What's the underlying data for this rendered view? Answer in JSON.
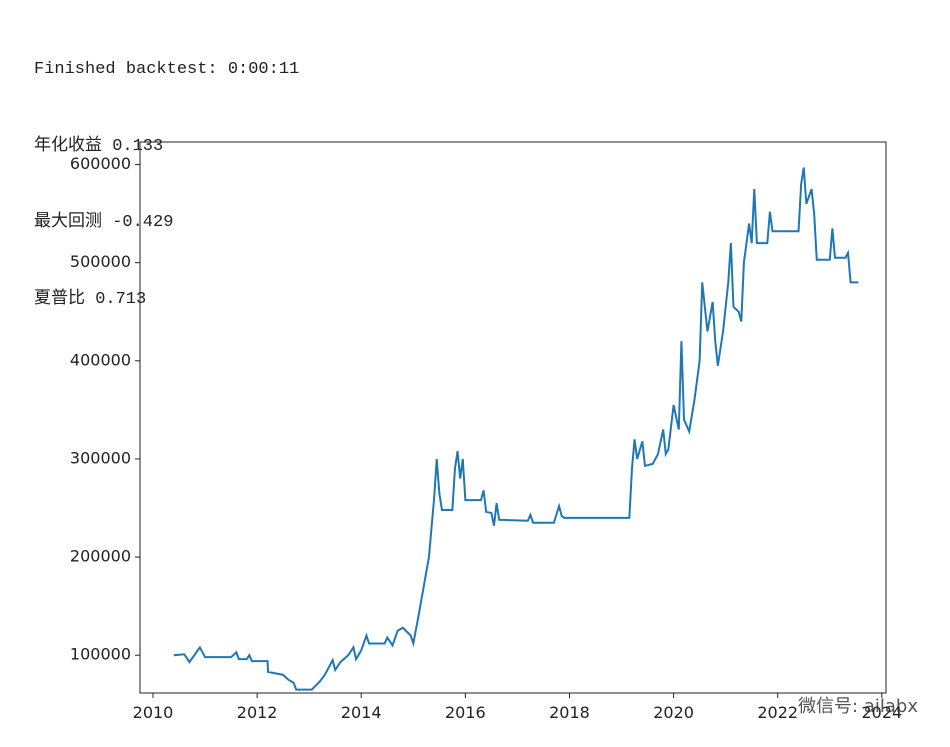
{
  "output": {
    "lines": [
      "Finished backtest: 0:00:11",
      "年化收益 0.133",
      "最大回测 -0.429",
      "夏普比 0.713"
    ]
  },
  "watermark": "微信号: ailabx",
  "chart_data": {
    "type": "line",
    "x": [
      2010.4,
      2010.6,
      2010.7,
      2010.9,
      2011.0,
      2011.5,
      2011.6,
      2011.65,
      2011.8,
      2011.85,
      2011.9,
      2012.2,
      2012.21,
      2012.5,
      2012.6,
      2012.7,
      2012.75,
      2013.05,
      2013.2,
      2013.3,
      2013.45,
      2013.5,
      2013.6,
      2013.75,
      2013.85,
      2013.9,
      2014.0,
      2014.1,
      2014.15,
      2014.45,
      2014.5,
      2014.6,
      2014.7,
      2014.8,
      2014.95,
      2015.0,
      2015.1,
      2015.2,
      2015.3,
      2015.4,
      2015.45,
      2015.5,
      2015.55,
      2015.75,
      2015.8,
      2015.85,
      2015.9,
      2015.95,
      2016.0,
      2016.3,
      2016.35,
      2016.4,
      2016.5,
      2016.55,
      2016.6,
      2016.65,
      2017.2,
      2017.25,
      2017.3,
      2017.7,
      2017.8,
      2017.85,
      2017.9,
      2019.15,
      2019.2,
      2019.25,
      2019.3,
      2019.4,
      2019.45,
      2019.6,
      2019.7,
      2019.8,
      2019.85,
      2019.9,
      2020.0,
      2020.1,
      2020.15,
      2020.2,
      2020.3,
      2020.4,
      2020.5,
      2020.55,
      2020.65,
      2020.75,
      2020.8,
      2020.85,
      2020.95,
      2021.05,
      2021.1,
      2021.15,
      2021.25,
      2021.3,
      2021.35,
      2021.45,
      2021.5,
      2021.55,
      2021.6,
      2021.8,
      2021.85,
      2021.9,
      2022.4,
      2022.45,
      2022.5,
      2022.55,
      2022.65,
      2022.7,
      2022.75,
      2023.0,
      2023.05,
      2023.1,
      2023.3,
      2023.35,
      2023.4,
      2023.55
    ],
    "series": [
      {
        "color": "#1f77b4",
        "values": [
          100000,
          101000,
          93000,
          108000,
          98000,
          98000,
          103000,
          96000,
          96000,
          100000,
          94000,
          94000,
          83000,
          80000,
          75000,
          72000,
          65000,
          65000,
          73000,
          80000,
          95000,
          85000,
          93000,
          100000,
          108000,
          96000,
          105000,
          120000,
          112000,
          112000,
          118000,
          110000,
          125000,
          128000,
          120000,
          112000,
          140000,
          170000,
          200000,
          260000,
          300000,
          265000,
          248000,
          248000,
          290000,
          308000,
          280000,
          300000,
          258000,
          258000,
          268000,
          246000,
          245000,
          232000,
          255000,
          238000,
          237000,
          243000,
          235000,
          235000,
          252000,
          242000,
          240000,
          240000,
          290000,
          320000,
          300000,
          318000,
          293000,
          295000,
          305000,
          330000,
          305000,
          310000,
          355000,
          330000,
          420000,
          340000,
          328000,
          360000,
          400000,
          480000,
          430000,
          460000,
          420000,
          395000,
          430000,
          480000,
          520000,
          455000,
          450000,
          440000,
          500000,
          540000,
          520000,
          575000,
          520000,
          520000,
          552000,
          532000,
          532000,
          580000,
          597000,
          560000,
          575000,
          550000,
          503000,
          503000,
          535000,
          505000,
          505000,
          510000,
          480000,
          480000
        ]
      }
    ],
    "xlim": [
      2009.75,
      2024.08
    ],
    "xticks": [
      2010,
      2012,
      2014,
      2016,
      2018,
      2020,
      2022,
      2024
    ],
    "ylim": [
      61500,
      623000
    ],
    "yticks": [
      100000,
      200000,
      300000,
      400000,
      500000,
      600000
    ]
  }
}
